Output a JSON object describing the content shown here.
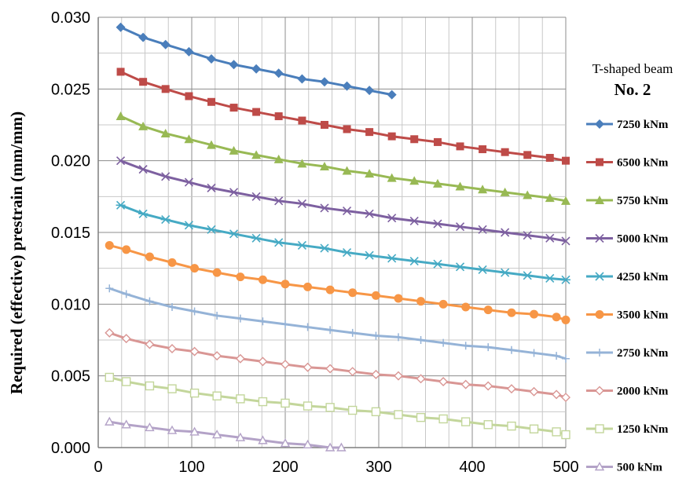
{
  "chart_data": {
    "type": "line",
    "title": "",
    "xlabel": "",
    "ylabel": "Required (effective) prestrain (mm/mm)",
    "xlim": [
      0,
      500
    ],
    "ylim": [
      0,
      0.03
    ],
    "x_ticks": [
      "0",
      "100",
      "200",
      "300",
      "400",
      "500"
    ],
    "y_ticks": [
      "0.000",
      "0.005",
      "0.010",
      "0.015",
      "0.020",
      "0.025",
      "0.030"
    ],
    "grid": true,
    "legend_position": "right",
    "legend_title": "T-shaped beam",
    "legend_subtitle": "No. 2",
    "series": [
      {
        "name": "7250 kNm",
        "color": "#4a7ebb",
        "marker": "diamond",
        "x": [
          24,
          48,
          72,
          97,
          121,
          145,
          169,
          193,
          218,
          242,
          266,
          290,
          314
        ],
        "y": [
          0.0293,
          0.0286,
          0.0281,
          0.0276,
          0.0271,
          0.0267,
          0.0264,
          0.0261,
          0.0257,
          0.0255,
          0.0252,
          0.0249,
          0.0246
        ]
      },
      {
        "name": "6500 kNm",
        "color": "#be4b48",
        "marker": "square",
        "x": [
          24,
          48,
          72,
          97,
          121,
          145,
          169,
          193,
          218,
          242,
          266,
          290,
          314,
          338,
          363,
          387,
          411,
          435,
          459,
          483,
          508
        ],
        "y": [
          0.0262,
          0.0255,
          0.025,
          0.0245,
          0.0241,
          0.0237,
          0.0234,
          0.0231,
          0.0228,
          0.0225,
          0.0222,
          0.022,
          0.0217,
          0.0215,
          0.0213,
          0.021,
          0.0208,
          0.0206,
          0.0204,
          0.0202,
          0.02
        ]
      },
      {
        "name": "5750 kNm",
        "color": "#98b954",
        "marker": "triangle",
        "x": [
          24,
          48,
          72,
          97,
          121,
          145,
          169,
          193,
          218,
          242,
          266,
          290,
          314,
          338,
          363,
          387,
          411,
          435,
          459,
          483,
          508
        ],
        "y": [
          0.0231,
          0.0224,
          0.0219,
          0.0215,
          0.0211,
          0.0207,
          0.0204,
          0.0201,
          0.0198,
          0.0196,
          0.0193,
          0.0191,
          0.0188,
          0.0186,
          0.0184,
          0.0182,
          0.018,
          0.0178,
          0.0176,
          0.0174,
          0.0172
        ]
      },
      {
        "name": "5000 kNm",
        "color": "#7d60a0",
        "marker": "x",
        "x": [
          24,
          48,
          72,
          97,
          121,
          145,
          169,
          193,
          218,
          242,
          266,
          290,
          314,
          338,
          363,
          387,
          411,
          435,
          459,
          483,
          508
        ],
        "y": [
          0.02,
          0.0194,
          0.0189,
          0.0185,
          0.0181,
          0.0178,
          0.0175,
          0.0172,
          0.017,
          0.0167,
          0.0165,
          0.0163,
          0.016,
          0.0158,
          0.0156,
          0.0154,
          0.0152,
          0.015,
          0.0148,
          0.0146,
          0.0144
        ]
      },
      {
        "name": "4250 kNm",
        "color": "#46aac4",
        "marker": "star",
        "x": [
          24,
          48,
          72,
          97,
          121,
          145,
          169,
          193,
          218,
          242,
          266,
          290,
          314,
          338,
          363,
          387,
          411,
          435,
          459,
          483,
          508
        ],
        "y": [
          0.0169,
          0.0163,
          0.0159,
          0.0155,
          0.0152,
          0.0149,
          0.0146,
          0.0143,
          0.0141,
          0.0139,
          0.0136,
          0.0134,
          0.0132,
          0.013,
          0.0128,
          0.0126,
          0.0124,
          0.0122,
          0.012,
          0.0118,
          0.0117
        ]
      },
      {
        "name": "3500 kNm",
        "color": "#f79646",
        "marker": "circle",
        "x": [
          12,
          30,
          55,
          79,
          103,
          127,
          152,
          176,
          200,
          224,
          248,
          272,
          297,
          321,
          345,
          369,
          393,
          417,
          442,
          466,
          490,
          514
        ],
        "y": [
          0.0141,
          0.0138,
          0.0133,
          0.0129,
          0.0125,
          0.0122,
          0.0119,
          0.0117,
          0.0114,
          0.0112,
          0.011,
          0.0108,
          0.0106,
          0.0104,
          0.0102,
          0.01,
          0.0098,
          0.0096,
          0.0094,
          0.0093,
          0.0091,
          0.0089
        ]
      },
      {
        "name": "2750 kNm",
        "color": "#95b3d7",
        "marker": "plus",
        "x": [
          12,
          30,
          55,
          79,
          103,
          127,
          152,
          176,
          200,
          224,
          248,
          272,
          297,
          321,
          345,
          369,
          393,
          417,
          442,
          466,
          490,
          514
        ],
        "y": [
          0.0111,
          0.0107,
          0.0102,
          0.0098,
          0.0095,
          0.0092,
          0.009,
          0.0088,
          0.0086,
          0.0084,
          0.0082,
          0.008,
          0.0078,
          0.0077,
          0.0075,
          0.0073,
          0.0071,
          0.007,
          0.0068,
          0.0066,
          0.0064,
          0.0062
        ]
      },
      {
        "name": "2000 kNm",
        "color": "#d99694",
        "marker": "diamond-open",
        "x": [
          12,
          30,
          55,
          79,
          103,
          127,
          152,
          176,
          200,
          224,
          248,
          272,
          297,
          321,
          345,
          369,
          393,
          417,
          442,
          466,
          490,
          514
        ],
        "y": [
          0.008,
          0.0076,
          0.0072,
          0.0069,
          0.0067,
          0.0064,
          0.0062,
          0.006,
          0.0058,
          0.0056,
          0.0055,
          0.0053,
          0.0051,
          0.005,
          0.0048,
          0.0046,
          0.0044,
          0.0043,
          0.0041,
          0.0039,
          0.0037,
          0.0035
        ]
      },
      {
        "name": "1250 kNm",
        "color": "#c3d69b",
        "marker": "square-open",
        "x": [
          12,
          30,
          55,
          79,
          103,
          127,
          152,
          176,
          200,
          224,
          248,
          272,
          297,
          321,
          345,
          369,
          393,
          417,
          442,
          466,
          490,
          514
        ],
        "y": [
          0.0049,
          0.0046,
          0.0043,
          0.0041,
          0.0038,
          0.0036,
          0.0034,
          0.0032,
          0.0031,
          0.0029,
          0.0028,
          0.0026,
          0.0025,
          0.0023,
          0.0021,
          0.002,
          0.0018,
          0.0016,
          0.0015,
          0.0013,
          0.0011,
          0.0009
        ]
      },
      {
        "name": "500 kNm",
        "color": "#b3a2c7",
        "marker": "triangle-open",
        "x": [
          12,
          30,
          55,
          79,
          103,
          127,
          152,
          176,
          200,
          224,
          248,
          260
        ],
        "y": [
          0.0018,
          0.0016,
          0.0014,
          0.0012,
          0.0011,
          0.0009,
          0.0007,
          0.0005,
          0.0003,
          0.0002,
          0.0,
          0.0
        ]
      }
    ]
  }
}
